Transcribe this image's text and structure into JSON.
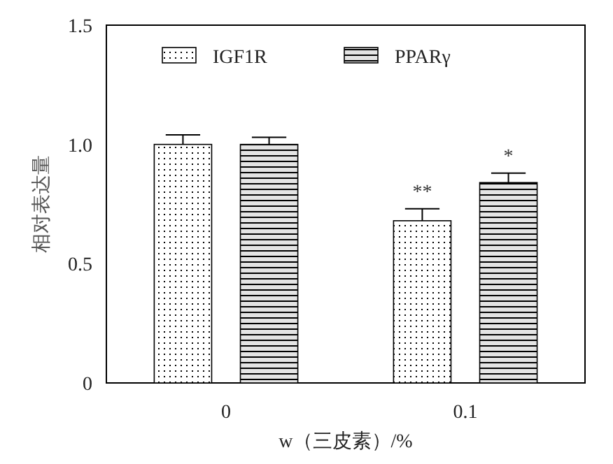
{
  "chart_data": {
    "type": "bar",
    "xlabel": "w（三皮素）/%",
    "ylabel": "相对表达量",
    "categories": [
      "0",
      "0.1"
    ],
    "series": [
      {
        "name": "IGF1R",
        "color": "#000000",
        "values": [
          1.0,
          0.68
        ],
        "errors": [
          0.04,
          0.05
        ]
      },
      {
        "name": "PPARγ",
        "color": "#000000",
        "values": [
          1.0,
          0.84
        ],
        "errors": [
          0.03,
          0.04
        ]
      }
    ],
    "ylim": [
      0,
      1.5
    ],
    "yticks": [
      {
        "value": 0,
        "label": "0"
      },
      {
        "value": 0.5,
        "label": "0.5"
      },
      {
        "value": 1.0,
        "label": "1.0"
      },
      {
        "value": 1.5,
        "label": "1.5"
      }
    ],
    "annotations": [
      "**",
      "*"
    ],
    "legend": "top",
    "grid": false
  }
}
